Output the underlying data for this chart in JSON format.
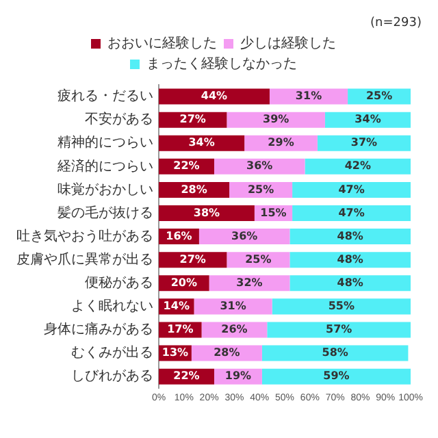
{
  "chart_data": {
    "type": "bar",
    "orientation": "horizontal",
    "stacked": true,
    "categories": [
      "疲れる・だるい",
      "不安がある",
      "精神的につらい",
      "経済的につらい",
      "味覚がおかしい",
      "髪の毛が抜ける",
      "吐き気やおう吐がある",
      "皮膚や爪に異常が出る",
      "便秘がある",
      "よく眠れない",
      "身体に痛みがある",
      "むくみが出る",
      "しびれがある"
    ],
    "series": [
      {
        "name": "おおいに経験した",
        "color": "#a50021",
        "values": [
          44,
          27,
          34,
          22,
          28,
          38,
          16,
          27,
          20,
          14,
          17,
          13,
          22
        ],
        "value_labels": [
          "44%",
          "27%",
          "34%",
          "22%",
          "28%",
          "38%",
          "16%",
          "27%",
          "20%",
          "14%",
          "17%",
          "13%",
          "22%"
        ]
      },
      {
        "name": "少しは経験した",
        "color": "#f49cf2",
        "values": [
          31,
          39,
          29,
          36,
          25,
          15,
          36,
          25,
          32,
          31,
          26,
          28,
          19
        ],
        "value_labels": [
          "31%",
          "39%",
          "29%",
          "36%",
          "25%",
          "15%",
          "36%",
          "25%",
          "32%",
          "31%",
          "26%",
          "28%",
          "19%"
        ]
      },
      {
        "name": "まったく経験しなかった",
        "color": "#52eef6",
        "values": [
          25,
          34,
          37,
          42,
          47,
          47,
          48,
          48,
          48,
          55,
          57,
          58,
          59
        ],
        "value_labels": [
          "25%",
          "34%",
          "37%",
          "42%",
          "47%",
          "47%",
          "48%",
          "48%",
          "48%",
          "55%",
          "57%",
          "58%",
          "59%"
        ]
      }
    ],
    "xlim": [
      0,
      100
    ],
    "xticks": [
      {
        "value": 0,
        "label": "0%"
      },
      {
        "value": 10,
        "label": "10%"
      },
      {
        "value": 20,
        "label": "20%"
      },
      {
        "value": 30,
        "label": "30%"
      },
      {
        "value": 40,
        "label": "40%"
      },
      {
        "value": 50,
        "label": "50%"
      },
      {
        "value": 60,
        "label": "60%"
      },
      {
        "value": 70,
        "label": "70%"
      },
      {
        "value": 80,
        "label": "80%"
      },
      {
        "value": 90,
        "label": "90%"
      },
      {
        "value": 100,
        "label": "100%"
      }
    ],
    "legend": "top",
    "annotations": [
      "(n=293)"
    ]
  }
}
